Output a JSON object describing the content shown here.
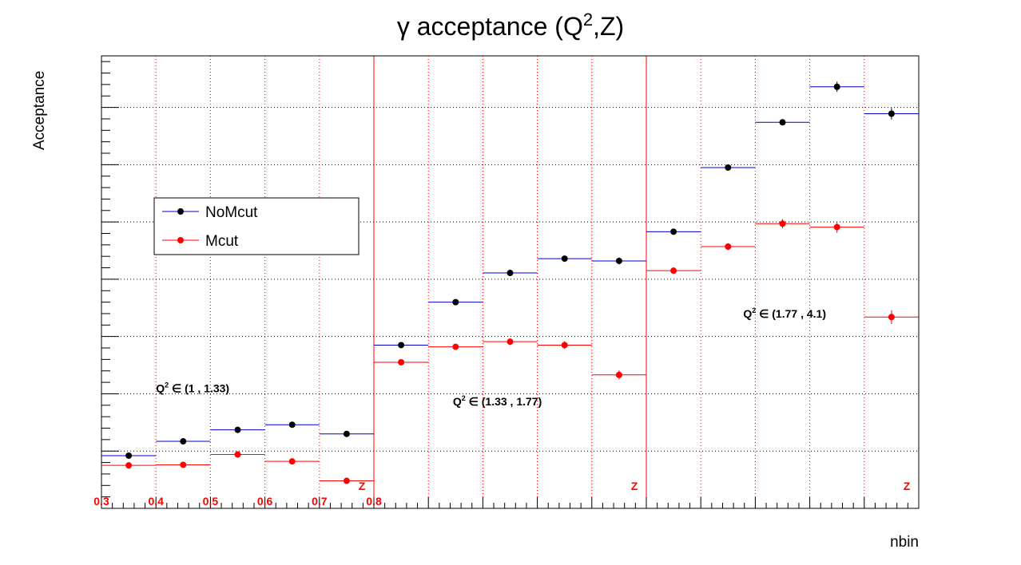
{
  "chart_data": {
    "type": "scatter",
    "title_prefix": "γ acceptance (Q",
    "title_sup": "2",
    "title_suffix": ",Z)",
    "xlabel": "nbin",
    "ylabel": "Acceptance",
    "xlim": [
      0,
      15
    ],
    "ylim": [
      0.01,
      0.089
    ],
    "x_ticks": [
      "0",
      "2",
      "4",
      "6",
      "8",
      "10",
      "12",
      "14"
    ],
    "y_ticks": [
      "0.01",
      "0.02",
      "0.03",
      "0.04",
      "0.05",
      "0.06",
      "0.07",
      "0.08"
    ],
    "grid": true,
    "legend_position": "upper-left",
    "series": [
      {
        "name": "NoMcut",
        "color": "#000000",
        "line_color": "#0000cc",
        "x": [
          0.5,
          1.5,
          2.5,
          3.5,
          4.5,
          5.5,
          6.5,
          7.5,
          8.5,
          9.5,
          10.5,
          11.5,
          12.5,
          13.5,
          14.5
        ],
        "y": [
          0.0192,
          0.0217,
          0.0237,
          0.0246,
          0.023,
          0.0385,
          0.046,
          0.0511,
          0.0536,
          0.0532,
          0.0583,
          0.0695,
          0.0774,
          0.0836,
          0.0789
        ],
        "err": [
          0.0003,
          0.0003,
          0.0003,
          0.0003,
          0.0003,
          0.0004,
          0.0004,
          0.0004,
          0.0005,
          0.0006,
          0.0004,
          0.0004,
          0.0005,
          0.0009,
          0.001
        ]
      },
      {
        "name": "Mcut",
        "color": "#ff0000",
        "line_color": "#ff0000",
        "x": [
          0.5,
          1.5,
          2.5,
          3.5,
          4.5,
          5.5,
          6.5,
          7.5,
          8.5,
          9.5,
          10.5,
          11.5,
          12.5,
          13.5,
          14.5
        ],
        "y": [
          0.0175,
          0.0176,
          0.0194,
          0.0182,
          0.0148,
          0.0355,
          0.0382,
          0.0391,
          0.0385,
          0.0333,
          0.0515,
          0.0557,
          0.0597,
          0.0591,
          0.0434
        ],
        "err": [
          0.0003,
          0.0003,
          0.0003,
          0.0003,
          0.0004,
          0.0004,
          0.0005,
          0.0006,
          0.0007,
          0.0008,
          0.0005,
          0.0006,
          0.0008,
          0.001,
          0.0012
        ]
      }
    ],
    "q2_separators_x": [
      5,
      10
    ],
    "annotations": [
      {
        "prefix": "Q",
        "sup": "2",
        "text": " ∈ (1 , 1.33)",
        "x": 1.0,
        "y": 0.0303
      },
      {
        "prefix": "Q",
        "sup": "2",
        "text": " ∈ (1.33 , 1.77)",
        "x": 6.45,
        "y": 0.028
      },
      {
        "prefix": "Q",
        "sup": "2",
        "text": " ∈ (1.77 , 4.1)",
        "x": 11.78,
        "y": 0.0433
      }
    ],
    "z_bin_labels": [
      {
        "text": "0.3",
        "x": 0.0
      },
      {
        "text": "0.4",
        "x": 1.0
      },
      {
        "text": "0.5",
        "x": 2.0
      },
      {
        "text": "0.6",
        "x": 3.0
      },
      {
        "text": "0.7",
        "x": 4.0
      },
      {
        "text": "0.8",
        "x": 5.0
      }
    ],
    "z_axis_labels": [
      {
        "text": "Z",
        "x": 4.78
      },
      {
        "text": "Z",
        "x": 9.78
      },
      {
        "text": "Z",
        "x": 14.78
      }
    ]
  }
}
